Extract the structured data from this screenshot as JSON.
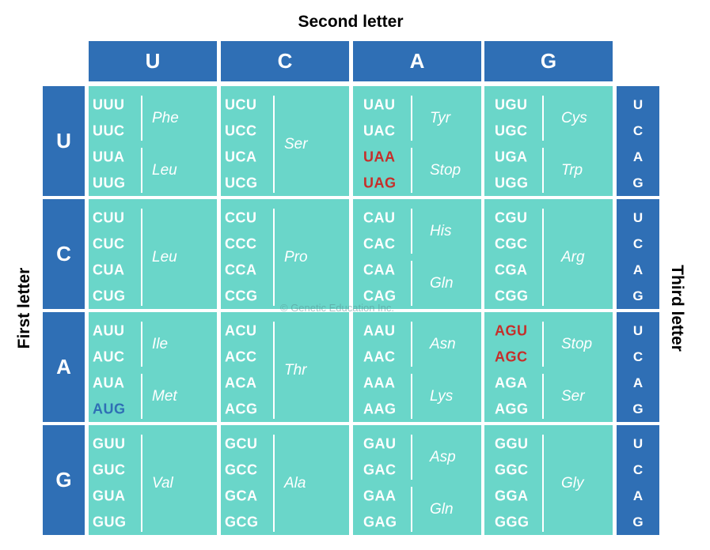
{
  "titles": {
    "second": "Second letter",
    "first": "First letter",
    "third": "Third letter"
  },
  "columns": [
    "U",
    "C",
    "A",
    "G"
  ],
  "rows": [
    "U",
    "C",
    "A",
    "G"
  ],
  "third_letters": [
    "U",
    "C",
    "A",
    "G"
  ],
  "watermark": "© Genetic Education Inc.",
  "colors": {
    "header": "#2f6fb5",
    "cell": "#6ad6c9",
    "stop": "#c62e2a",
    "start": "#2f6fb5"
  },
  "blocks": [
    [
      {
        "codons": [
          "UUU",
          "UUC",
          "UUA",
          "UUG"
        ],
        "groups": [
          {
            "start": 0,
            "end": 1,
            "label": "Phe"
          },
          {
            "start": 2,
            "end": 3,
            "label": "Leu"
          }
        ]
      },
      {
        "codons": [
          "UCU",
          "UCC",
          "UCA",
          "UCG"
        ],
        "groups": [
          {
            "start": 0,
            "end": 3,
            "label": "Ser"
          }
        ]
      },
      {
        "codons": [
          "UAU",
          "UAC",
          "UAA",
          "UAG"
        ],
        "stop": [
          2,
          3
        ],
        "groups": [
          {
            "start": 0,
            "end": 1,
            "label": "Tyr"
          },
          {
            "start": 2,
            "end": 3,
            "label": "Stop"
          }
        ]
      },
      {
        "codons": [
          "UGU",
          "UGC",
          "UGA",
          "UGG"
        ],
        "groups": [
          {
            "start": 0,
            "end": 1,
            "label": "Cys"
          },
          {
            "start": 2,
            "end": 3,
            "label": "Trp"
          }
        ]
      }
    ],
    [
      {
        "codons": [
          "CUU",
          "CUC",
          "CUA",
          "CUG"
        ],
        "groups": [
          {
            "start": 0,
            "end": 3,
            "label": "Leu"
          }
        ]
      },
      {
        "codons": [
          "CCU",
          "CCC",
          "CCA",
          "CCG"
        ],
        "groups": [
          {
            "start": 0,
            "end": 3,
            "label": "Pro"
          }
        ]
      },
      {
        "codons": [
          "CAU",
          "CAC",
          "CAA",
          "CAG"
        ],
        "groups": [
          {
            "start": 0,
            "end": 1,
            "label": "His"
          },
          {
            "start": 2,
            "end": 3,
            "label": "Gln"
          }
        ]
      },
      {
        "codons": [
          "CGU",
          "CGC",
          "CGA",
          "CGG"
        ],
        "groups": [
          {
            "start": 0,
            "end": 3,
            "label": "Arg"
          }
        ]
      }
    ],
    [
      {
        "codons": [
          "AUU",
          "AUC",
          "AUA",
          "AUG"
        ],
        "start": [
          3
        ],
        "groups": [
          {
            "start": 0,
            "end": 1,
            "label": "Ile"
          },
          {
            "start": 2,
            "end": 3,
            "label": "Met"
          }
        ]
      },
      {
        "codons": [
          "ACU",
          "ACC",
          "ACA",
          "ACG"
        ],
        "groups": [
          {
            "start": 0,
            "end": 3,
            "label": "Thr"
          }
        ]
      },
      {
        "codons": [
          "AAU",
          "AAC",
          "AAA",
          "AAG"
        ],
        "groups": [
          {
            "start": 0,
            "end": 1,
            "label": "Asn"
          },
          {
            "start": 2,
            "end": 3,
            "label": "Lys"
          }
        ]
      },
      {
        "codons": [
          "AGU",
          "AGC",
          "AGA",
          "AGG"
        ],
        "stop": [
          0,
          1
        ],
        "groups": [
          {
            "start": 0,
            "end": 1,
            "label": "Stop"
          },
          {
            "start": 2,
            "end": 3,
            "label": "Ser"
          }
        ]
      }
    ],
    [
      {
        "codons": [
          "GUU",
          "GUC",
          "GUA",
          "GUG"
        ],
        "groups": [
          {
            "start": 0,
            "end": 3,
            "label": "Val"
          }
        ]
      },
      {
        "codons": [
          "GCU",
          "GCC",
          "GCA",
          "GCG"
        ],
        "groups": [
          {
            "start": 0,
            "end": 3,
            "label": "Ala"
          }
        ]
      },
      {
        "codons": [
          "GAU",
          "GAC",
          "GAA",
          "GAG"
        ],
        "groups": [
          {
            "start": 0,
            "end": 1,
            "label": "Asp"
          },
          {
            "start": 2,
            "end": 3,
            "label": "Gln"
          }
        ]
      },
      {
        "codons": [
          "GGU",
          "GGC",
          "GGA",
          "GGG"
        ],
        "groups": [
          {
            "start": 0,
            "end": 3,
            "label": "Gly"
          }
        ]
      }
    ]
  ]
}
